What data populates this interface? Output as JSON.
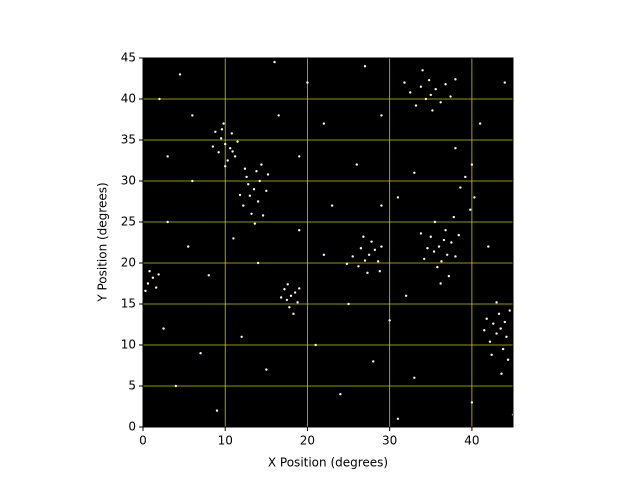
{
  "chart_data": {
    "type": "scatter",
    "x_label": "X Position (degrees)",
    "y_label": "Y Position (degrees)",
    "x": [
      10,
      9.5,
      10.6,
      9.2,
      10.8,
      11.2,
      8.8,
      10.3,
      9.8,
      11.5,
      8.5,
      10,
      9.6,
      10.9,
      13.5,
      13,
      14.2,
      12.6,
      14,
      13.8,
      12.2,
      15,
      13.2,
      14.6,
      12.8,
      15.2,
      11.8,
      14.4,
      13.6,
      12.4,
      18,
      17.5,
      18.5,
      17.2,
      18.8,
      17.8,
      19,
      16.8,
      18.3,
      17.6,
      27.5,
      27,
      28.2,
      26.5,
      28.6,
      27.8,
      26.2,
      29,
      25.5,
      27.3,
      28.8,
      26.8,
      24.8,
      36,
      35.4,
      36.6,
      37,
      35,
      36.3,
      37.5,
      34.6,
      36.8,
      35.8,
      38,
      34.2,
      37.2,
      35.5,
      33.8,
      38.4,
      36.2,
      37.8,
      35,
      34.4,
      35.6,
      33.8,
      36.2,
      34.8,
      33.2,
      36.8,
      32.5,
      35.2,
      37.4,
      34,
      38,
      31.8,
      43.5,
      43,
      44,
      42.6,
      44.2,
      43.3,
      42.2,
      44.6,
      43.8,
      41.8,
      43,
      44.4,
      42.4,
      43.6,
      41.5,
      0.6,
      1.2,
      0.3,
      1.6,
      0.8,
      1.9,
      39.2,
      40,
      38.6,
      40.3,
      39.8,
      2,
      4.5,
      6,
      3,
      5.5,
      2.5,
      7,
      4,
      9,
      12,
      15,
      14,
      20,
      22,
      19,
      23,
      21,
      24,
      27,
      29,
      26,
      31,
      30,
      28,
      33,
      32,
      38,
      41,
      44,
      40,
      45,
      16,
      8,
      25,
      31,
      11,
      6,
      22,
      33,
      42,
      3,
      19,
      29,
      16.5
    ],
    "values": [
      34.5,
      35.2,
      34,
      33.5,
      35.8,
      33,
      36,
      32.5,
      37,
      34.8,
      34.2,
      31.8,
      36.3,
      33.6,
      29,
      28.2,
      30,
      30.5,
      27.5,
      31.2,
      27,
      28.8,
      26,
      25.8,
      29.6,
      30.8,
      28.3,
      32,
      24.8,
      31.5,
      16,
      15.5,
      16.4,
      16.8,
      15.2,
      14.6,
      16.9,
      15.8,
      13.8,
      17.4,
      21,
      20.3,
      21.6,
      21.8,
      20.2,
      22.6,
      19.6,
      22,
      20.8,
      18.8,
      19,
      23.2,
      19.9,
      22,
      21.4,
      22.8,
      21,
      23.2,
      20.2,
      22.5,
      21.8,
      24,
      19.5,
      20.8,
      20.5,
      18.4,
      25,
      23.6,
      23.4,
      17.5,
      25.6,
      40.5,
      40,
      41.2,
      41.5,
      39.6,
      42.3,
      39.2,
      41.8,
      40.8,
      38.6,
      40.3,
      43.5,
      42.4,
      42,
      12,
      11.4,
      12.8,
      12.6,
      11,
      13.8,
      10.4,
      14.2,
      9.5,
      13.2,
      15.2,
      8.2,
      8.8,
      6.5,
      11.8,
      17.5,
      18.2,
      16.6,
      17,
      19,
      18.6,
      30.5,
      32,
      29.2,
      28,
      26.5,
      40,
      43,
      30,
      25,
      22,
      12,
      9,
      5,
      2,
      11,
      7,
      20,
      42,
      37,
      33,
      27,
      10,
      4,
      44,
      38,
      32,
      28,
      13,
      8,
      6,
      16,
      34,
      37,
      42,
      3,
      1.5,
      44.5,
      18.5,
      15,
      1,
      23,
      38,
      21,
      31,
      22,
      33,
      24,
      27,
      38
    ],
    "color": "#fff6dc",
    "background": "#000000",
    "grid": true,
    "grid_color": "#c8c800",
    "xlim": [
      0,
      45
    ],
    "ylim": [
      0,
      45
    ],
    "xticks": [
      0,
      10,
      20,
      30,
      40
    ],
    "yticks": [
      0,
      5,
      10,
      15,
      20,
      25,
      30,
      35,
      40,
      45
    ]
  }
}
